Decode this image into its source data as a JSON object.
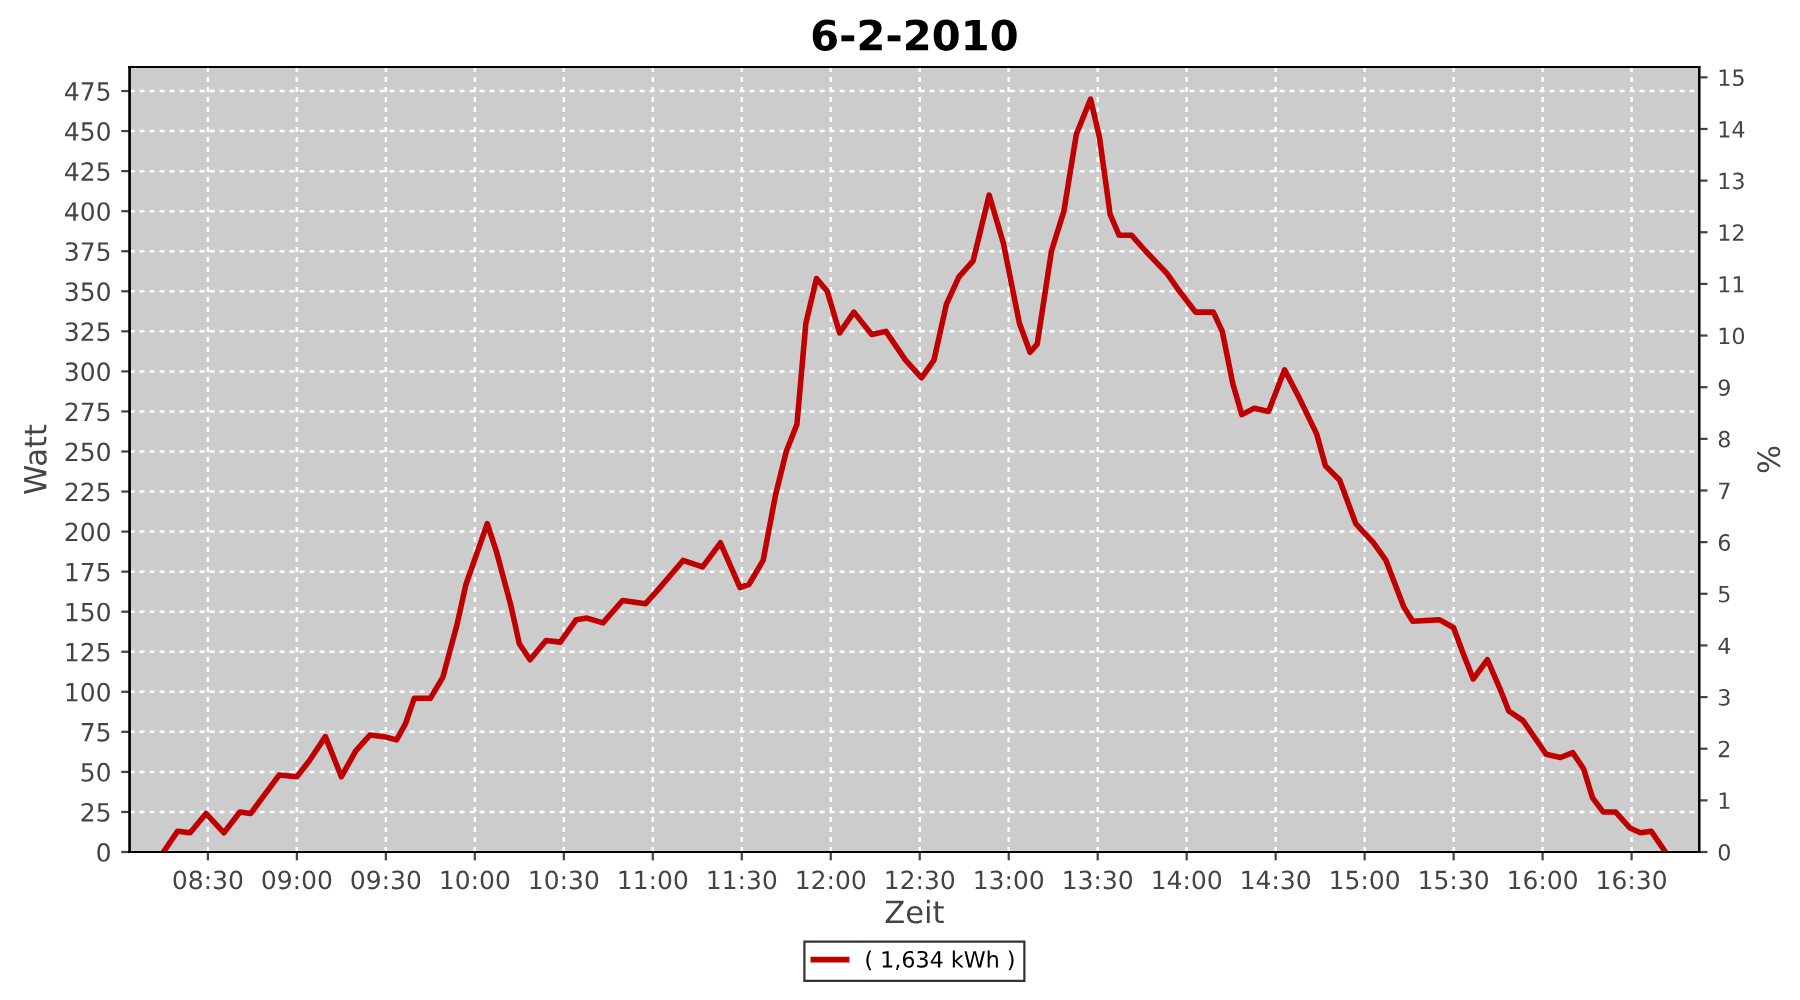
{
  "chart_data": {
    "type": "line",
    "title": "6-2-2010",
    "xlabel": "Zeit",
    "ylabel": "Watt",
    "y2label": "%",
    "xlim": [
      8.06,
      16.88
    ],
    "xticks": [
      {
        "value": 8.5,
        "label": "08:30"
      },
      {
        "value": 9,
        "label": "09:00"
      },
      {
        "value": 9.5,
        "label": "09:30"
      },
      {
        "value": 10,
        "label": "10:00"
      },
      {
        "value": 10.5,
        "label": "10:30"
      },
      {
        "value": 11,
        "label": "11:00"
      },
      {
        "value": 11.5,
        "label": "11:30"
      },
      {
        "value": 12,
        "label": "12:00"
      },
      {
        "value": 12.5,
        "label": "12:30"
      },
      {
        "value": 13,
        "label": "13:00"
      },
      {
        "value": 13.5,
        "label": "13:30"
      },
      {
        "value": 14,
        "label": "14:00"
      },
      {
        "value": 14.5,
        "label": "14:30"
      },
      {
        "value": 15,
        "label": "15:00"
      },
      {
        "value": 15.5,
        "label": "15:30"
      },
      {
        "value": 16,
        "label": "16:00"
      },
      {
        "value": 16.5,
        "label": "16:30"
      }
    ],
    "ylim": [
      0,
      490
    ],
    "yticks": [
      0,
      25,
      50,
      75,
      100,
      125,
      150,
      175,
      200,
      225,
      250,
      275,
      300,
      325,
      350,
      375,
      400,
      425,
      450,
      475
    ],
    "y2lim": [
      0,
      15.2
    ],
    "y2ticks": [
      0,
      1,
      2,
      3,
      4,
      5,
      6,
      7,
      8,
      9,
      10,
      11,
      12,
      13,
      14,
      15
    ],
    "grid": true,
    "legend": "bottom",
    "marker": "none",
    "line_style": "solid",
    "series": [
      {
        "name": "( 1,634 kWh )",
        "color": "#c00000",
        "x": [
          8.25,
          8.33,
          8.4,
          8.49,
          8.59,
          8.68,
          8.74,
          8.9,
          9.0,
          9.07,
          9.16,
          9.25,
          9.33,
          9.41,
          9.49,
          9.56,
          9.61,
          9.66,
          9.75,
          9.82,
          9.9,
          9.95,
          10.07,
          10.12,
          10.2,
          10.25,
          10.31,
          10.4,
          10.48,
          10.57,
          10.63,
          10.72,
          10.83,
          10.96,
          11.04,
          11.17,
          11.28,
          11.38,
          11.49,
          11.54,
          11.62,
          11.69,
          11.75,
          11.81,
          11.86,
          11.92,
          11.98,
          12.05,
          12.13,
          12.23,
          12.31,
          12.42,
          12.51,
          12.58,
          12.65,
          12.72,
          12.8,
          12.89,
          12.97,
          13.06,
          13.12,
          13.16,
          13.24,
          13.31,
          13.38,
          13.46,
          13.51,
          13.57,
          13.62,
          13.69,
          13.77,
          13.89,
          13.96,
          14.05,
          14.15,
          14.2,
          14.26,
          14.31,
          14.38,
          14.46,
          14.55,
          14.63,
          14.73,
          14.78,
          14.86,
          14.95,
          15.05,
          15.12,
          15.22,
          15.27,
          15.42,
          15.5,
          15.55,
          15.61,
          15.69,
          15.76,
          15.81,
          15.89,
          16.02,
          16.1,
          16.17,
          16.23,
          16.28,
          16.34,
          16.41,
          16.49,
          16.55,
          16.61,
          16.69
        ],
        "values": [
          0,
          13,
          12,
          24,
          12,
          25,
          24,
          48,
          47,
          57,
          72,
          47,
          63,
          73,
          72,
          70,
          80,
          96,
          96,
          109,
          142,
          167,
          205,
          188,
          155,
          130,
          120,
          132,
          131,
          145,
          146,
          143,
          157,
          155,
          165,
          182,
          178,
          193,
          165,
          167,
          182,
          223,
          250,
          267,
          330,
          358,
          350,
          324,
          337,
          323,
          325,
          307,
          296,
          307,
          342,
          359,
          369,
          410,
          380,
          330,
          312,
          317,
          375,
          400,
          448,
          470,
          446,
          398,
          385,
          385,
          375,
          361,
          350,
          337,
          337,
          325,
          292,
          273,
          277,
          275,
          301,
          284,
          261,
          241,
          232,
          205,
          193,
          182,
          153,
          144,
          145,
          140,
          125,
          108,
          120,
          102,
          88,
          82,
          61,
          59,
          62,
          52,
          34,
          25,
          25,
          15,
          12,
          13,
          0
        ]
      }
    ]
  }
}
